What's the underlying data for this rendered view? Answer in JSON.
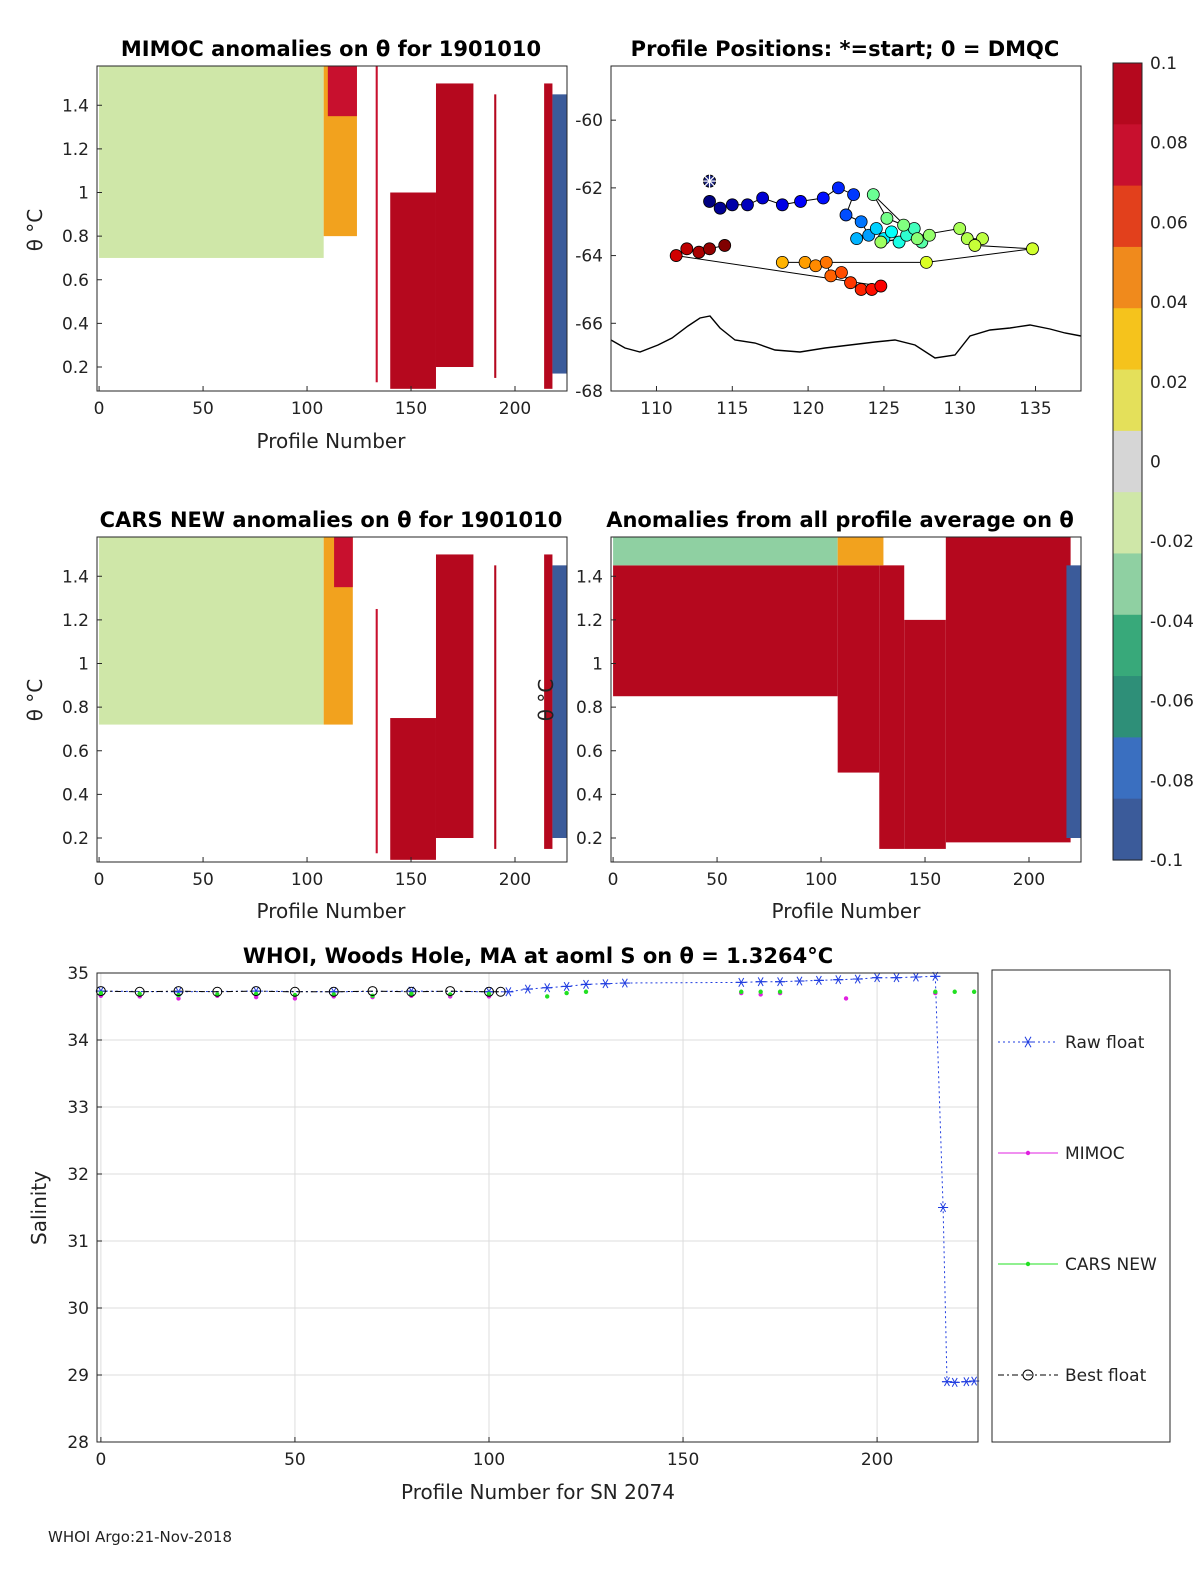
{
  "chart_data": [
    {
      "id": "p1",
      "type": "heatmap",
      "title": "MIMOC anomalies on θ  for 1901010",
      "xlabel": "Profile Number",
      "ylabel": "θ °C",
      "xlim": [
        -1,
        225
      ],
      "ylim": [
        0.09,
        1.58
      ],
      "xticks": [
        "0",
        "50",
        "100",
        "150",
        "200"
      ],
      "xtick_values": [
        0,
        50,
        100,
        150,
        200
      ],
      "yticks": [
        "0.2",
        "0.4",
        "0.6",
        "0.8",
        "1",
        "1.2",
        "1.4"
      ],
      "ytick_values": [
        0.2,
        0.4,
        0.6,
        0.8,
        1.0,
        1.2,
        1.4
      ],
      "regions": [
        {
          "x": [
            0,
            108
          ],
          "y": [
            0.7,
            1.58
          ],
          "color": "#cfe7a8"
        },
        {
          "x": [
            108,
            124
          ],
          "y": [
            0.8,
            1.58
          ],
          "color": "#f2a21e"
        },
        {
          "x": [
            110,
            124
          ],
          "y": [
            1.35,
            1.58
          ],
          "color": "#c8102e"
        },
        {
          "x": [
            133,
            134
          ],
          "y": [
            0.13,
            1.58
          ],
          "color": "#c8102e"
        },
        {
          "x": [
            140,
            162
          ],
          "y": [
            0.1,
            1.0
          ],
          "color": "#b5081e"
        },
        {
          "x": [
            162,
            180
          ],
          "y": [
            0.2,
            1.5
          ],
          "color": "#b5081e"
        },
        {
          "x": [
            190,
            191
          ],
          "y": [
            0.15,
            1.45
          ],
          "color": "#b5081e"
        },
        {
          "x": [
            214,
            218
          ],
          "y": [
            0.1,
            1.5
          ],
          "color": "#b5081e"
        },
        {
          "x": [
            218,
            225
          ],
          "y": [
            0.17,
            1.45
          ],
          "color": "#3b5b9a"
        }
      ]
    },
    {
      "id": "p2",
      "type": "scatter",
      "title": "Profile Positions: *=start; 0 = DMQC",
      "xlim": [
        107,
        138
      ],
      "ylim": [
        -68,
        -58.4
      ],
      "xticks": [
        "110",
        "115",
        "120",
        "125",
        "130",
        "135"
      ],
      "xtick_values": [
        110,
        115,
        120,
        125,
        130,
        135
      ],
      "yticks": [
        "-60",
        "-62",
        "-64",
        "-66",
        "-68"
      ],
      "ytick_values": [
        -60,
        -62,
        -64,
        -66,
        -68
      ],
      "start_marker": {
        "x": 113.5,
        "y": -61.8
      },
      "points": [
        {
          "x": 113.5,
          "y": -62.4,
          "c": 0
        },
        {
          "x": 114.2,
          "y": -62.6,
          "c": 0.02
        },
        {
          "x": 115.0,
          "y": -62.5,
          "c": 0.04
        },
        {
          "x": 116.0,
          "y": -62.5,
          "c": 0.06
        },
        {
          "x": 117.0,
          "y": -62.3,
          "c": 0.08
        },
        {
          "x": 118.3,
          "y": -62.5,
          "c": 0.1
        },
        {
          "x": 119.5,
          "y": -62.4,
          "c": 0.12
        },
        {
          "x": 121.0,
          "y": -62.3,
          "c": 0.14
        },
        {
          "x": 122.0,
          "y": -62.0,
          "c": 0.16
        },
        {
          "x": 123.0,
          "y": -62.2,
          "c": 0.18
        },
        {
          "x": 122.5,
          "y": -62.8,
          "c": 0.2
        },
        {
          "x": 123.5,
          "y": -63.0,
          "c": 0.24
        },
        {
          "x": 124.0,
          "y": -63.4,
          "c": 0.28
        },
        {
          "x": 123.2,
          "y": -63.5,
          "c": 0.3
        },
        {
          "x": 124.5,
          "y": -63.2,
          "c": 0.33
        },
        {
          "x": 125.0,
          "y": -63.5,
          "c": 0.36
        },
        {
          "x": 125.5,
          "y": -63.3,
          "c": 0.38
        },
        {
          "x": 126.0,
          "y": -63.6,
          "c": 0.4
        },
        {
          "x": 126.5,
          "y": -63.4,
          "c": 0.42
        },
        {
          "x": 127.0,
          "y": -63.2,
          "c": 0.44
        },
        {
          "x": 127.5,
          "y": -63.6,
          "c": 0.46
        },
        {
          "x": 124.3,
          "y": -62.2,
          "c": 0.48
        },
        {
          "x": 125.2,
          "y": -62.9,
          "c": 0.49
        },
        {
          "x": 126.3,
          "y": -63.1,
          "c": 0.5
        },
        {
          "x": 127.2,
          "y": -63.5,
          "c": 0.51
        },
        {
          "x": 128.0,
          "y": -63.4,
          "c": 0.52
        },
        {
          "x": 124.8,
          "y": -63.6,
          "c": 0.53
        },
        {
          "x": 130.0,
          "y": -63.2,
          "c": 0.54
        },
        {
          "x": 130.5,
          "y": -63.5,
          "c": 0.55
        },
        {
          "x": 131.5,
          "y": -63.5,
          "c": 0.56
        },
        {
          "x": 131.0,
          "y": -63.7,
          "c": 0.57
        },
        {
          "x": 134.8,
          "y": -63.8,
          "c": 0.58
        },
        {
          "x": 127.8,
          "y": -64.2,
          "c": 0.59
        },
        {
          "x": 118.3,
          "y": -64.2,
          "c": 0.7
        },
        {
          "x": 119.8,
          "y": -64.2,
          "c": 0.72
        },
        {
          "x": 120.5,
          "y": -64.3,
          "c": 0.74
        },
        {
          "x": 121.2,
          "y": -64.2,
          "c": 0.76
        },
        {
          "x": 121.5,
          "y": -64.6,
          "c": 0.78
        },
        {
          "x": 122.2,
          "y": -64.5,
          "c": 0.8
        },
        {
          "x": 122.8,
          "y": -64.8,
          "c": 0.82
        },
        {
          "x": 123.5,
          "y": -65.0,
          "c": 0.84
        },
        {
          "x": 124.2,
          "y": -65.0,
          "c": 0.86
        },
        {
          "x": 124.8,
          "y": -64.9,
          "c": 0.88
        },
        {
          "x": 111.3,
          "y": -64.0,
          "c": 0.92
        },
        {
          "x": 112.0,
          "y": -63.8,
          "c": 0.94
        },
        {
          "x": 112.8,
          "y": -63.9,
          "c": 0.96
        },
        {
          "x": 113.5,
          "y": -63.8,
          "c": 0.98
        },
        {
          "x": 114.5,
          "y": -63.7,
          "c": 1.0
        }
      ]
    },
    {
      "id": "p3",
      "type": "heatmap",
      "title": "CARS NEW anomalies on θ for 1901010",
      "xlabel": "Profile Number",
      "ylabel": "θ °C",
      "xlim": [
        -1,
        225
      ],
      "ylim": [
        0.09,
        1.58
      ],
      "xticks": [
        "0",
        "50",
        "100",
        "150",
        "200"
      ],
      "xtick_values": [
        0,
        50,
        100,
        150,
        200
      ],
      "yticks": [
        "0.2",
        "0.4",
        "0.6",
        "0.8",
        "1",
        "1.2",
        "1.4"
      ],
      "ytick_values": [
        0.2,
        0.4,
        0.6,
        0.8,
        1.0,
        1.2,
        1.4
      ],
      "regions": [
        {
          "x": [
            0,
            108
          ],
          "y": [
            0.72,
            1.58
          ],
          "color": "#cfe7a8"
        },
        {
          "x": [
            108,
            122
          ],
          "y": [
            0.72,
            1.58
          ],
          "color": "#f2a21e"
        },
        {
          "x": [
            113,
            122
          ],
          "y": [
            1.35,
            1.58
          ],
          "color": "#c8102e"
        },
        {
          "x": [
            133,
            134
          ],
          "y": [
            0.13,
            1.25
          ],
          "color": "#c8102e"
        },
        {
          "x": [
            140,
            162
          ],
          "y": [
            0.1,
            0.75
          ],
          "color": "#b5081e"
        },
        {
          "x": [
            162,
            180
          ],
          "y": [
            0.2,
            1.5
          ],
          "color": "#b5081e"
        },
        {
          "x": [
            190,
            191
          ],
          "y": [
            0.15,
            1.45
          ],
          "color": "#b5081e"
        },
        {
          "x": [
            214,
            218
          ],
          "y": [
            0.15,
            1.5
          ],
          "color": "#b5081e"
        },
        {
          "x": [
            218,
            225
          ],
          "y": [
            0.2,
            1.45
          ],
          "color": "#3b5b9a"
        }
      ]
    },
    {
      "id": "p4",
      "type": "heatmap",
      "title": "Anomalies from all profile average on θ",
      "xlabel": "Profile Number",
      "ylabel": "θ °C",
      "xlim": [
        -1,
        225
      ],
      "ylim": [
        0.09,
        1.58
      ],
      "xticks": [
        "0",
        "50",
        "100",
        "150",
        "200"
      ],
      "xtick_values": [
        0,
        50,
        100,
        150,
        200
      ],
      "yticks": [
        "0.2",
        "0.4",
        "0.6",
        "0.8",
        "1",
        "1.2",
        "1.4"
      ],
      "ytick_values": [
        0.2,
        0.4,
        0.6,
        0.8,
        1.0,
        1.2,
        1.4
      ],
      "regions": [
        {
          "x": [
            0,
            108
          ],
          "y": [
            0.85,
            1.45
          ],
          "color": "#b5081e"
        },
        {
          "x": [
            108,
            128
          ],
          "y": [
            0.5,
            1.45
          ],
          "color": "#b5081e"
        },
        {
          "x": [
            128,
            140
          ],
          "y": [
            0.15,
            1.45
          ],
          "color": "#b5081e"
        },
        {
          "x": [
            140,
            160
          ],
          "y": [
            0.15,
            1.2
          ],
          "color": "#b5081e"
        },
        {
          "x": [
            160,
            220
          ],
          "y": [
            0.18,
            1.58
          ],
          "color": "#b5081e"
        },
        {
          "x": [
            0,
            108
          ],
          "y": [
            1.45,
            1.58
          ],
          "color": "#8fd0a2"
        },
        {
          "x": [
            108,
            130
          ],
          "y": [
            1.45,
            1.58
          ],
          "color": "#f2a21e"
        },
        {
          "x": [
            218,
            225
          ],
          "y": [
            0.2,
            1.45
          ],
          "color": "#3b5b9a"
        }
      ]
    },
    {
      "id": "p5",
      "type": "line",
      "title": "WHOI, Woods Hole, MA at aoml S on θ = 1.3264°C",
      "xlabel": "Profile Number for SN 2074",
      "ylabel": "Salinity",
      "xlim": [
        -1,
        226
      ],
      "ylim": [
        28,
        35
      ],
      "xticks": [
        "0",
        "50",
        "100",
        "150",
        "200"
      ],
      "xtick_values": [
        0,
        50,
        100,
        150,
        200
      ],
      "yticks": [
        "28",
        "29",
        "30",
        "31",
        "32",
        "33",
        "34",
        "35"
      ],
      "ytick_values": [
        28,
        29,
        30,
        31,
        32,
        33,
        34,
        35
      ],
      "series": [
        {
          "name": "Raw float",
          "color": "#1f3ce0",
          "x": [
            0,
            20,
            40,
            60,
            80,
            100,
            105,
            110,
            115,
            120,
            125,
            130,
            135,
            165,
            170,
            175,
            180,
            185,
            190,
            195,
            200,
            205,
            210,
            215,
            217,
            218,
            220,
            223,
            225
          ],
          "y": [
            34.73,
            34.72,
            34.73,
            34.72,
            34.73,
            34.72,
            34.72,
            34.76,
            34.78,
            34.8,
            34.83,
            34.84,
            34.85,
            34.86,
            34.87,
            34.87,
            34.88,
            34.89,
            34.9,
            34.91,
            34.93,
            34.93,
            34.94,
            34.95,
            31.5,
            28.9,
            28.89,
            28.9,
            28.91
          ]
        },
        {
          "name": "MIMOC",
          "color": "#e020e0",
          "x": [
            0,
            10,
            20,
            30,
            40,
            50,
            60,
            70,
            80,
            90,
            100,
            165,
            170,
            175,
            192,
            215
          ],
          "y": [
            34.66,
            34.65,
            34.62,
            34.66,
            34.64,
            34.62,
            34.65,
            34.64,
            34.66,
            34.65,
            34.65,
            34.7,
            34.68,
            34.7,
            34.62,
            34.7
          ]
        },
        {
          "name": "CARS NEW",
          "color": "#22e022",
          "x": [
            0,
            10,
            20,
            30,
            40,
            50,
            60,
            70,
            80,
            90,
            100,
            115,
            120,
            125,
            165,
            170,
            175,
            215,
            220,
            225
          ],
          "y": [
            34.7,
            34.69,
            34.67,
            34.68,
            34.69,
            34.67,
            34.68,
            34.66,
            34.69,
            34.68,
            34.69,
            34.65,
            34.7,
            34.72,
            34.72,
            34.72,
            34.72,
            34.72,
            34.72,
            34.72
          ]
        },
        {
          "name": "Best float",
          "color": "#000000",
          "x": [
            0,
            10,
            20,
            30,
            40,
            50,
            60,
            70,
            80,
            90,
            100,
            103
          ],
          "y": [
            34.73,
            34.72,
            34.73,
            34.72,
            34.73,
            34.72,
            34.72,
            34.73,
            34.72,
            34.73,
            34.72,
            34.72
          ]
        }
      ],
      "legend": [
        "Raw float",
        "MIMOC",
        "CARS NEW",
        "Best float"
      ]
    }
  ],
  "colorbar": {
    "labels": [
      "0.1",
      "0.08",
      "0.06",
      "0.04",
      "0.02",
      "0",
      "-0.02",
      "-0.04",
      "-0.06",
      "-0.08",
      "-0.1"
    ],
    "values": [
      0.1,
      0.08,
      0.06,
      0.04,
      0.02,
      0,
      -0.02,
      -0.04,
      -0.06,
      -0.08,
      -0.1
    ],
    "colors": [
      "#b5081e",
      "#c8102e",
      "#e2401c",
      "#f08a1c",
      "#f5c31c",
      "#e4e05a",
      "#d6d6d6",
      "#cfe7a8",
      "#8fd0a2",
      "#38a97a",
      "#2e8f78",
      "#3a6fc0",
      "#3b5b9a"
    ]
  },
  "footer": "WHOI Argo:21-Nov-2018"
}
